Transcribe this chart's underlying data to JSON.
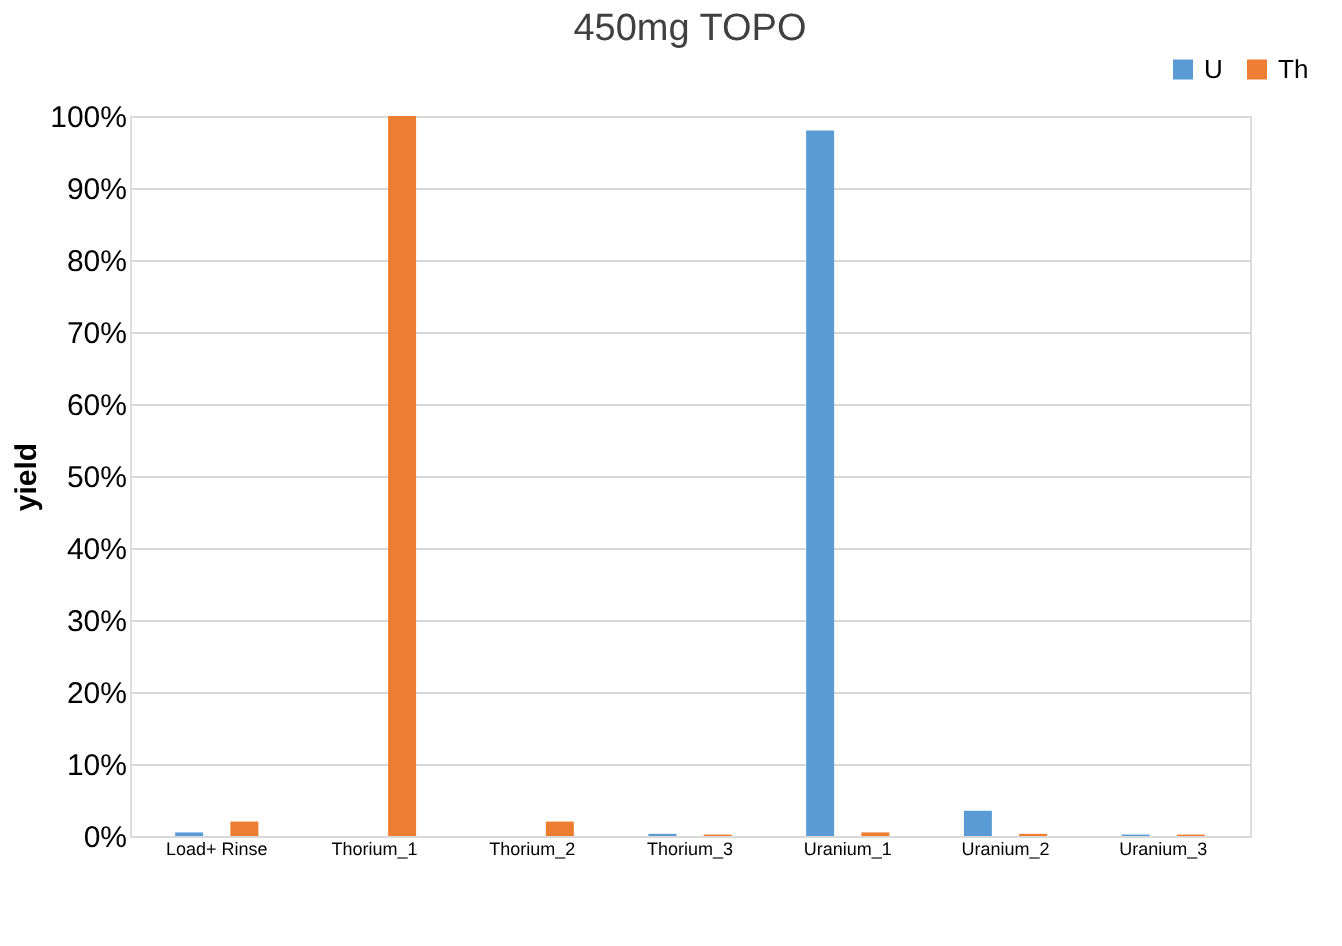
{
  "chart_data": {
    "type": "bar",
    "title": "450mg TOPO",
    "ylabel": "yield",
    "categories": [
      "Load+ Rinse",
      "Thorium_1",
      "Thorium_2",
      "Thorium_3",
      "Uranium_1",
      "Uranium_2",
      "Uranium_3"
    ],
    "series": [
      {
        "name": "U",
        "color": "#5b9bd5",
        "values": [
          0.5,
          0,
          0,
          0.3,
          98,
          3.5,
          0.2
        ]
      },
      {
        "name": "Th",
        "color": "#ed7d31",
        "values": [
          2,
          100,
          2,
          0.2,
          0.5,
          0.3,
          0.2
        ]
      }
    ],
    "ylim": [
      0,
      100
    ],
    "yticks": [
      {
        "value": 0,
        "label": "0%"
      },
      {
        "value": 10,
        "label": "10%"
      },
      {
        "value": 20,
        "label": "20%"
      },
      {
        "value": 30,
        "label": "30%"
      },
      {
        "value": 40,
        "label": "40%"
      },
      {
        "value": 50,
        "label": "50%"
      },
      {
        "value": 60,
        "label": "60%"
      },
      {
        "value": 70,
        "label": "70%"
      },
      {
        "value": 80,
        "label": "80%"
      },
      {
        "value": 90,
        "label": "90%"
      },
      {
        "value": 100,
        "label": "100%"
      }
    ],
    "grid": "y",
    "legend": "top right"
  }
}
